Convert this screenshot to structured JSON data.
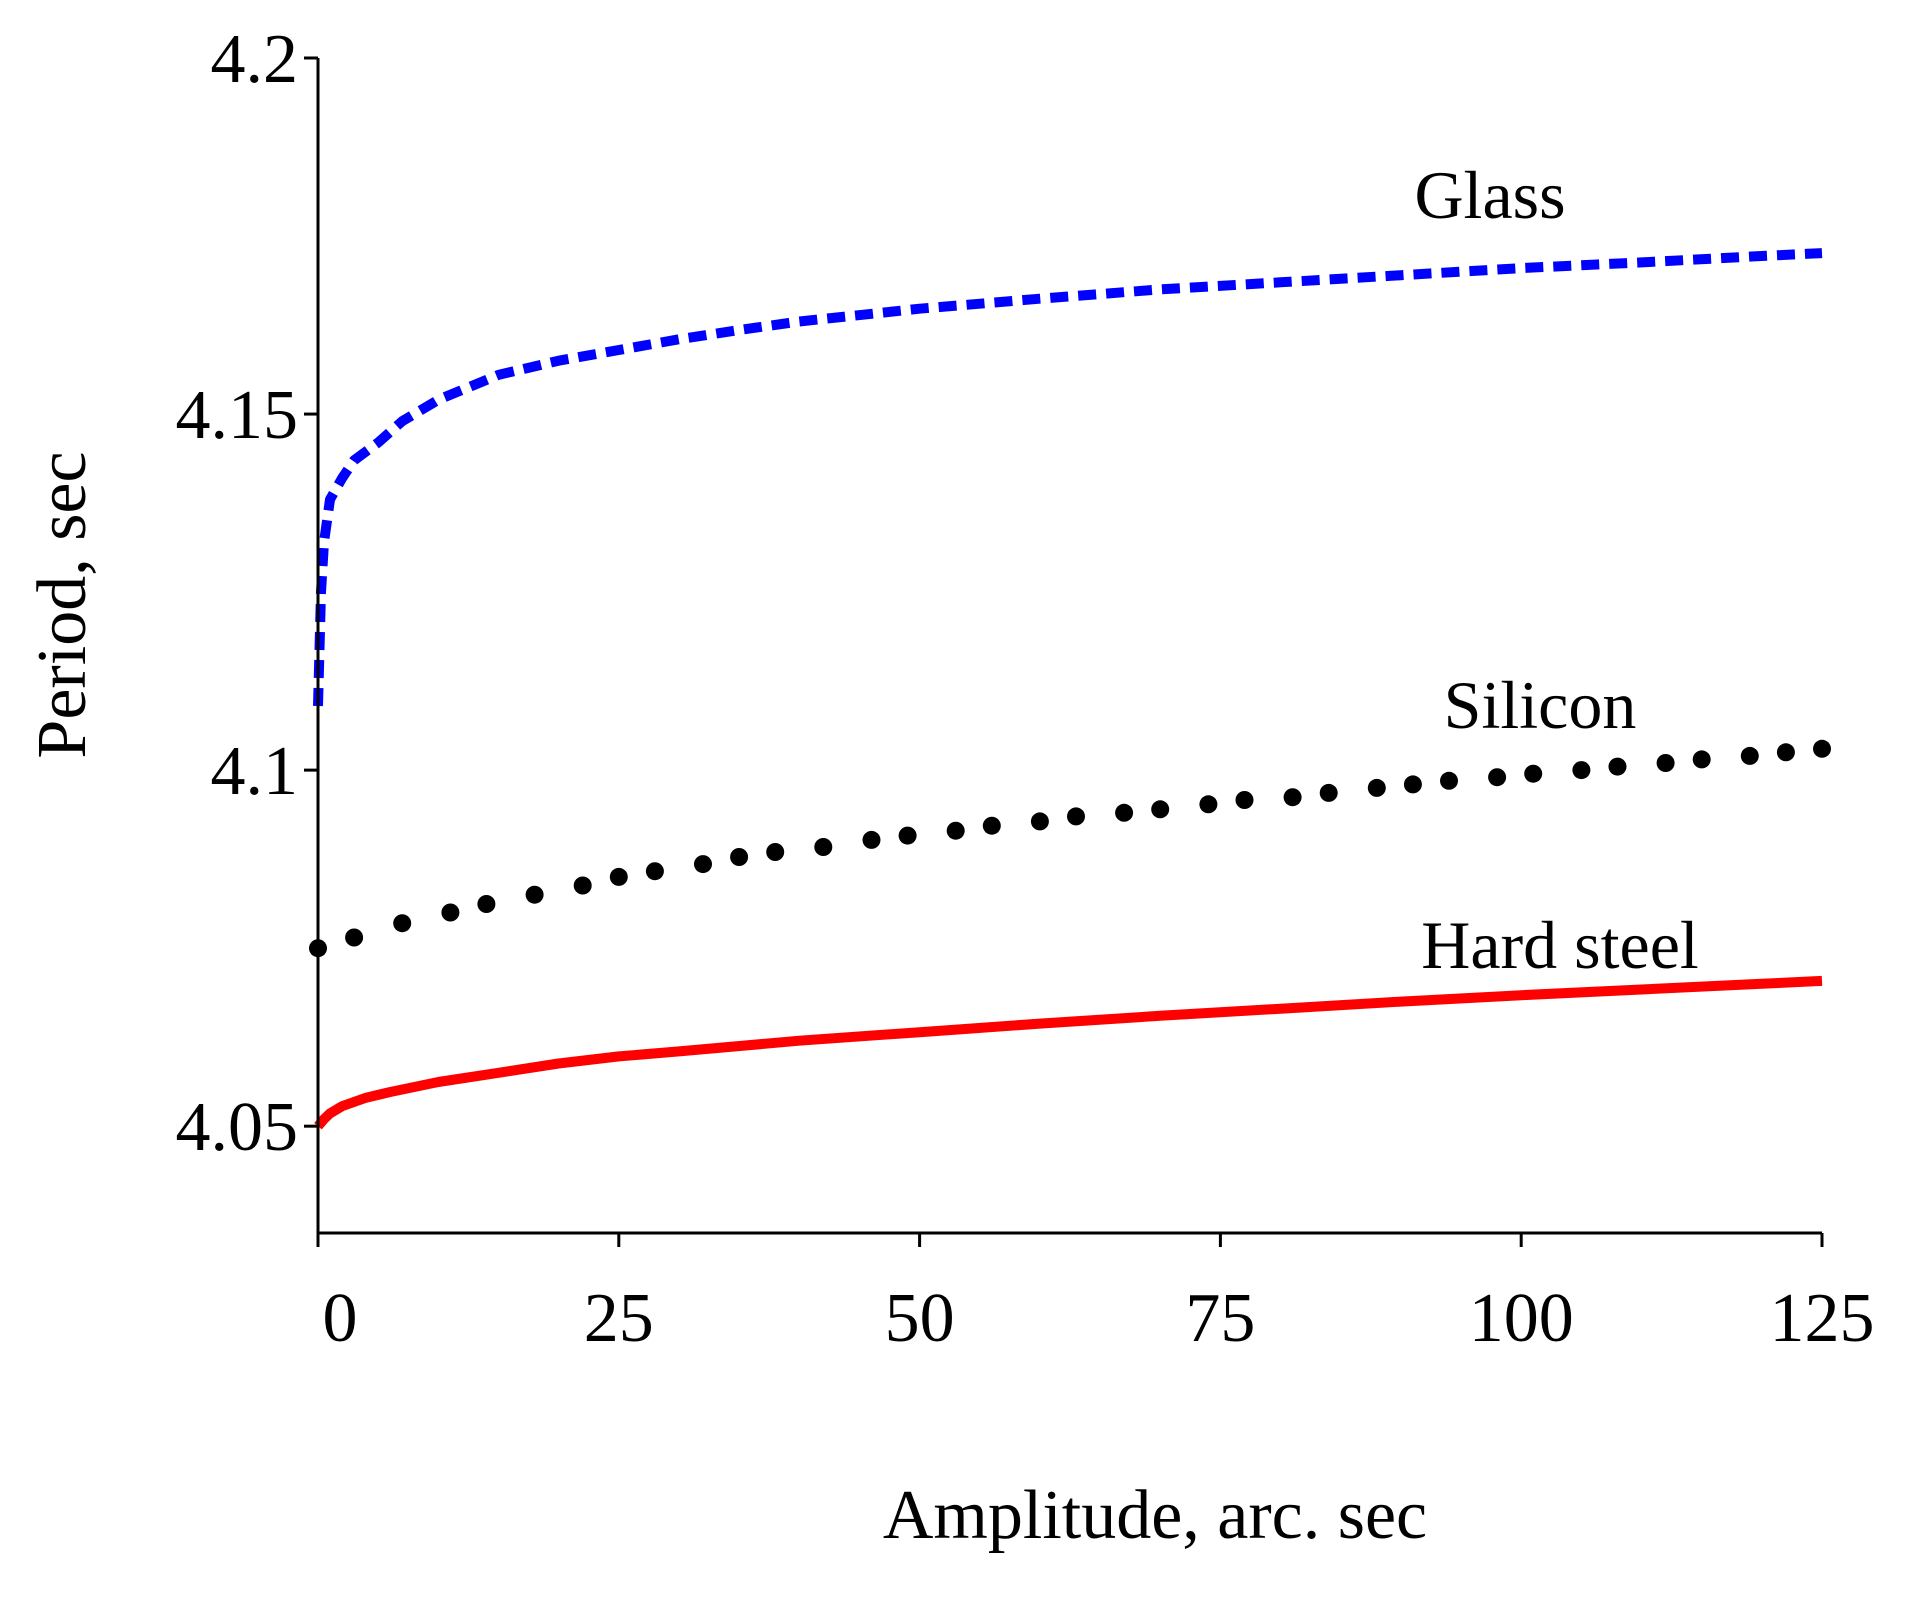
{
  "chart_data": {
    "type": "line",
    "title": "",
    "xlabel": "Amplitude, arc. sec",
    "ylabel": "Period, sec",
    "xlim": [
      0,
      125
    ],
    "ylim": [
      4.035,
      4.2
    ],
    "xticks": [
      0,
      25,
      50,
      75,
      100,
      125
    ],
    "xtick_labels": [
      "0",
      "25",
      "50",
      "75",
      "100",
      "125"
    ],
    "yticks": [
      4.05,
      4.1,
      4.15,
      4.2
    ],
    "ytick_labels": [
      "4.05",
      "4.1",
      "4.15",
      "4.2"
    ],
    "grid": false,
    "series": [
      {
        "name": "Glass",
        "style": "dashed",
        "color": "#0000ff",
        "x": [
          0,
          0.25,
          0.5,
          1,
          2,
          3,
          5,
          7,
          10,
          15,
          20,
          25,
          30,
          35,
          40,
          50,
          60,
          70,
          80,
          90,
          100,
          110,
          120,
          125
        ],
        "y": [
          4.109,
          4.125,
          4.132,
          4.138,
          4.141,
          4.1435,
          4.146,
          4.149,
          4.152,
          4.1555,
          4.1575,
          4.159,
          4.1605,
          4.1618,
          4.163,
          4.1648,
          4.1662,
          4.1675,
          4.1685,
          4.1695,
          4.1705,
          4.1713,
          4.1722,
          4.1726
        ]
      },
      {
        "name": "Silicon",
        "style": "dotted",
        "color": "#000000",
        "x": [
          0,
          3,
          7,
          11,
          14,
          18,
          22,
          25,
          28,
          32,
          35,
          38,
          42,
          46,
          49,
          53,
          56,
          60,
          63,
          67,
          70,
          74,
          77,
          81,
          84,
          88,
          91,
          94,
          98,
          101,
          105,
          108,
          112,
          115,
          119,
          122,
          125
        ],
        "y": [
          4.075,
          4.0765,
          4.0785,
          4.08,
          4.0812,
          4.0825,
          4.0838,
          4.085,
          4.0858,
          4.0868,
          4.0878,
          4.0885,
          4.0892,
          4.0902,
          4.0908,
          4.0915,
          4.0922,
          4.0928,
          4.0935,
          4.094,
          4.0945,
          4.0952,
          4.0958,
          4.0962,
          4.0968,
          4.0975,
          4.098,
          4.0985,
          4.099,
          4.0995,
          4.1,
          4.1005,
          4.101,
          4.1015,
          4.102,
          4.1025,
          4.103
        ]
      },
      {
        "name": "Hard steel",
        "style": "solid",
        "color": "#ff0000",
        "x": [
          0,
          0.5,
          1,
          2,
          4,
          6,
          10,
          15,
          20,
          25,
          30,
          40,
          50,
          60,
          70,
          80,
          90,
          100,
          110,
          120,
          125
        ],
        "y": [
          4.05,
          4.051,
          4.0518,
          4.0528,
          4.054,
          4.0548,
          4.0562,
          4.0575,
          4.0588,
          4.0598,
          4.0605,
          4.062,
          4.0632,
          4.0644,
          4.0655,
          4.0665,
          4.0675,
          4.0684,
          4.0692,
          4.07,
          4.0704
        ]
      }
    ]
  }
}
